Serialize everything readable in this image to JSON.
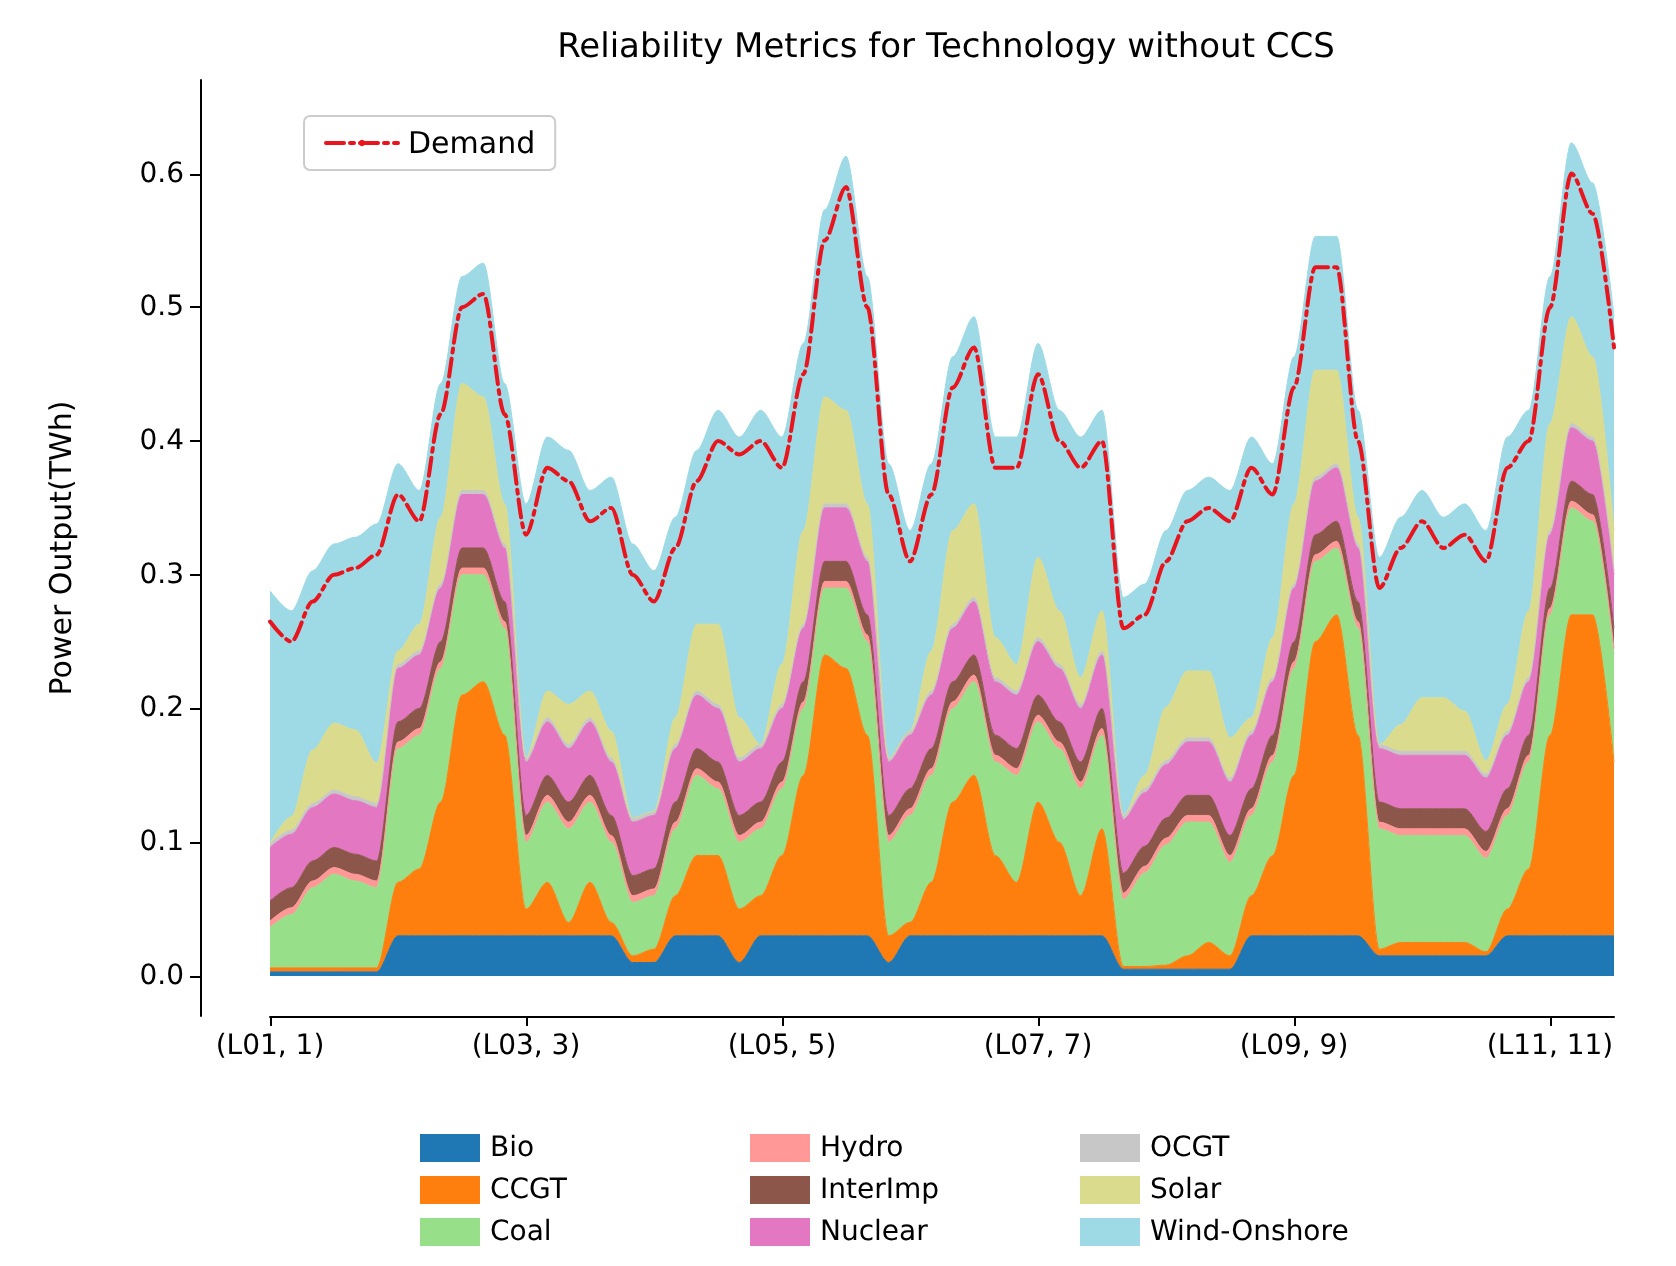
{
  "chart_data": {
    "type": "area",
    "title": "Reliability Metrics for Technology without CCS",
    "ylabel": "Power Output(TWh)",
    "stacked": true,
    "legend": "bottom",
    "grid": false,
    "categories": [
      "(L01, 1)",
      null,
      null,
      null,
      null,
      null,
      null,
      null,
      null,
      null,
      null,
      null,
      "(L03, 3)",
      null,
      null,
      null,
      null,
      null,
      null,
      null,
      null,
      null,
      null,
      null,
      "(L05, 5)",
      null,
      null,
      null,
      null,
      null,
      null,
      null,
      null,
      null,
      null,
      null,
      "(L07, 7)",
      null,
      null,
      null,
      null,
      null,
      null,
      null,
      null,
      null,
      null,
      null,
      "(L09, 9)",
      null,
      null,
      null,
      null,
      null,
      null,
      null,
      null,
      null,
      null,
      null,
      "(L11, 11)",
      null,
      null,
      null
    ],
    "ylim": [
      -0.03,
      0.67
    ],
    "yticks": [
      {
        "value": 0,
        "label": "0.0"
      },
      0.1,
      0.2,
      0.3,
      0.4,
      0.5,
      0.6
    ],
    "series": [
      {
        "name": "Bio",
        "color": "#1f77b4",
        "values": [
          0.003,
          0.003,
          0.003,
          0.003,
          0.003,
          0.003,
          0.03,
          0.03,
          0.03,
          0.03,
          0.03,
          0.03,
          0.03,
          0.03,
          0.03,
          0.03,
          0.03,
          0.01,
          0.01,
          0.03,
          0.03,
          0.03,
          0.01,
          0.03,
          0.03,
          0.03,
          0.03,
          0.03,
          0.03,
          0.01,
          0.03,
          0.03,
          0.03,
          0.03,
          0.03,
          0.03,
          0.03,
          0.03,
          0.03,
          0.03,
          0.005,
          0.005,
          0.005,
          0.005,
          0.005,
          0.005,
          0.03,
          0.03,
          0.03,
          0.03,
          0.03,
          0.03,
          0.015,
          0.015,
          0.015,
          0.015,
          0.015,
          0.015,
          0.03,
          0.03,
          0.03,
          0.03,
          0.03,
          0.03
        ]
      },
      {
        "name": "CCGT",
        "color": "#ff7f0e",
        "values": [
          0.003,
          0.003,
          0.003,
          0.003,
          0.003,
          0.003,
          0.04,
          0.05,
          0.1,
          0.18,
          0.19,
          0.15,
          0.02,
          0.04,
          0.01,
          0.04,
          0.01,
          0.005,
          0.01,
          0.03,
          0.06,
          0.06,
          0.04,
          0.03,
          0.06,
          0.12,
          0.21,
          0.2,
          0.15,
          0.02,
          0.01,
          0.04,
          0.1,
          0.12,
          0.06,
          0.04,
          0.1,
          0.07,
          0.03,
          0.08,
          0.002,
          0.002,
          0.003,
          0.01,
          0.02,
          0.01,
          0.03,
          0.06,
          0.12,
          0.22,
          0.24,
          0.15,
          0.005,
          0.01,
          0.01,
          0.01,
          0.01,
          0.003,
          0.02,
          0.05,
          0.15,
          0.24,
          0.24,
          0.13
        ]
      },
      {
        "name": "Coal",
        "color": "#98df8a",
        "values": [
          0.03,
          0.04,
          0.06,
          0.07,
          0.065,
          0.06,
          0.1,
          0.1,
          0.1,
          0.09,
          0.08,
          0.08,
          0.05,
          0.06,
          0.07,
          0.06,
          0.06,
          0.04,
          0.04,
          0.05,
          0.06,
          0.05,
          0.05,
          0.05,
          0.05,
          0.05,
          0.05,
          0.06,
          0.07,
          0.07,
          0.08,
          0.08,
          0.07,
          0.07,
          0.07,
          0.08,
          0.06,
          0.07,
          0.08,
          0.07,
          0.05,
          0.07,
          0.09,
          0.1,
          0.09,
          0.07,
          0.06,
          0.07,
          0.08,
          0.06,
          0.05,
          0.08,
          0.09,
          0.08,
          0.08,
          0.08,
          0.08,
          0.07,
          0.07,
          0.08,
          0.09,
          0.08,
          0.07,
          0.08
        ]
      },
      {
        "name": "Hydro",
        "color": "#ff9896",
        "values": [
          0.005,
          0.005,
          0.005,
          0.005,
          0.005,
          0.005,
          0.005,
          0.005,
          0.005,
          0.005,
          0.005,
          0.005,
          0.005,
          0.005,
          0.005,
          0.005,
          0.005,
          0.005,
          0.005,
          0.005,
          0.005,
          0.005,
          0.005,
          0.005,
          0.005,
          0.005,
          0.005,
          0.005,
          0.005,
          0.005,
          0.005,
          0.005,
          0.005,
          0.005,
          0.005,
          0.005,
          0.005,
          0.005,
          0.005,
          0.005,
          0.005,
          0.005,
          0.005,
          0.005,
          0.005,
          0.005,
          0.005,
          0.005,
          0.005,
          0.005,
          0.005,
          0.005,
          0.005,
          0.005,
          0.005,
          0.005,
          0.005,
          0.005,
          0.005,
          0.005,
          0.005,
          0.005,
          0.005,
          0.005
        ]
      },
      {
        "name": "InterImp",
        "color": "#8c564b",
        "values": [
          0.015,
          0.015,
          0.015,
          0.015,
          0.015,
          0.015,
          0.015,
          0.015,
          0.015,
          0.015,
          0.015,
          0.015,
          0.015,
          0.015,
          0.015,
          0.015,
          0.015,
          0.015,
          0.015,
          0.015,
          0.015,
          0.015,
          0.015,
          0.015,
          0.015,
          0.015,
          0.015,
          0.015,
          0.015,
          0.015,
          0.015,
          0.015,
          0.015,
          0.015,
          0.015,
          0.015,
          0.015,
          0.015,
          0.015,
          0.015,
          0.015,
          0.015,
          0.015,
          0.015,
          0.015,
          0.015,
          0.015,
          0.015,
          0.015,
          0.015,
          0.015,
          0.015,
          0.015,
          0.015,
          0.015,
          0.015,
          0.015,
          0.015,
          0.015,
          0.015,
          0.015,
          0.015,
          0.015,
          0.015
        ]
      },
      {
        "name": "Nuclear",
        "color": "#e377c2",
        "values": [
          0.04,
          0.04,
          0.04,
          0.04,
          0.04,
          0.04,
          0.04,
          0.04,
          0.04,
          0.04,
          0.04,
          0.04,
          0.04,
          0.04,
          0.04,
          0.04,
          0.04,
          0.04,
          0.04,
          0.04,
          0.04,
          0.04,
          0.04,
          0.04,
          0.04,
          0.04,
          0.04,
          0.04,
          0.04,
          0.04,
          0.04,
          0.04,
          0.04,
          0.04,
          0.04,
          0.04,
          0.04,
          0.04,
          0.04,
          0.04,
          0.04,
          0.04,
          0.04,
          0.04,
          0.04,
          0.04,
          0.04,
          0.04,
          0.04,
          0.04,
          0.04,
          0.04,
          0.04,
          0.04,
          0.04,
          0.04,
          0.04,
          0.04,
          0.04,
          0.04,
          0.04,
          0.04,
          0.04,
          0.04
        ]
      },
      {
        "name": "OCGT",
        "color": "#c7c7c7",
        "values": [
          0.003,
          0.003,
          0.003,
          0.003,
          0.003,
          0.003,
          0.003,
          0.003,
          0.003,
          0.003,
          0.003,
          0.003,
          0.003,
          0.003,
          0.003,
          0.003,
          0.003,
          0.003,
          0.003,
          0.003,
          0.003,
          0.003,
          0.003,
          0.003,
          0.003,
          0.003,
          0.003,
          0.003,
          0.003,
          0.003,
          0.003,
          0.003,
          0.003,
          0.003,
          0.003,
          0.003,
          0.003,
          0.003,
          0.003,
          0.003,
          0.003,
          0.003,
          0.003,
          0.003,
          0.003,
          0.003,
          0.003,
          0.003,
          0.003,
          0.003,
          0.003,
          0.003,
          0.003,
          0.003,
          0.003,
          0.003,
          0.003,
          0.003,
          0.003,
          0.003,
          0.003,
          0.003,
          0.003,
          0.003
        ]
      },
      {
        "name": "Solar",
        "color": "#dbdb8d",
        "values": [
          0,
          0.01,
          0.04,
          0.05,
          0.05,
          0.03,
          0.01,
          0.02,
          0.05,
          0.08,
          0.07,
          0.03,
          0,
          0.02,
          0.03,
          0.02,
          0.02,
          0,
          0,
          0.02,
          0.05,
          0.06,
          0.03,
          0,
          0.03,
          0.07,
          0.08,
          0.07,
          0.04,
          0,
          0,
          0.03,
          0.07,
          0.07,
          0.03,
          0.02,
          0.06,
          0.04,
          0.02,
          0.03,
          0,
          0.01,
          0.04,
          0.05,
          0.05,
          0.03,
          0.01,
          0.03,
          0.06,
          0.08,
          0.07,
          0.02,
          0,
          0.02,
          0.04,
          0.04,
          0.03,
          0.01,
          0.02,
          0.05,
          0.08,
          0.08,
          0.06,
          0.03
        ]
      },
      {
        "name": "Wind-Onshore",
        "color": "#9edae5",
        "values": [
          0.189,
          0.154,
          0.134,
          0.134,
          0.144,
          0.179,
          0.14,
          0.1,
          0.1,
          0.08,
          0.1,
          0.09,
          0.19,
          0.19,
          0.19,
          0.15,
          0.19,
          0.205,
          0.18,
          0.15,
          0.13,
          0.16,
          0.21,
          0.25,
          0.17,
          0.14,
          0.14,
          0.19,
          0.17,
          0.22,
          0.15,
          0.14,
          0.13,
          0.14,
          0.15,
          0.17,
          0.16,
          0.15,
          0.18,
          0.15,
          0.163,
          0.143,
          0.132,
          0.135,
          0.145,
          0.185,
          0.21,
          0.13,
          0.11,
          0.1,
          0.1,
          0.08,
          0.14,
          0.155,
          0.155,
          0.135,
          0.155,
          0.172,
          0.2,
          0.15,
          0.11,
          0.13,
          0.13,
          0.16
        ]
      },
      {
        "name": "Demand",
        "type": "line",
        "color": "#e8141e",
        "line_style": "dashed",
        "values": [
          0.265,
          0.25,
          0.28,
          0.3,
          0.305,
          0.315,
          0.36,
          0.34,
          0.42,
          0.5,
          0.51,
          0.42,
          0.33,
          0.38,
          0.37,
          0.34,
          0.35,
          0.3,
          0.28,
          0.32,
          0.37,
          0.4,
          0.39,
          0.4,
          0.38,
          0.45,
          0.55,
          0.59,
          0.5,
          0.36,
          0.31,
          0.36,
          0.44,
          0.47,
          0.38,
          0.38,
          0.45,
          0.4,
          0.38,
          0.4,
          0.26,
          0.27,
          0.31,
          0.34,
          0.35,
          0.34,
          0.38,
          0.36,
          0.44,
          0.53,
          0.53,
          0.4,
          0.29,
          0.32,
          0.34,
          0.32,
          0.33,
          0.31,
          0.38,
          0.4,
          0.5,
          0.6,
          0.57,
          0.47
        ]
      }
    ]
  }
}
